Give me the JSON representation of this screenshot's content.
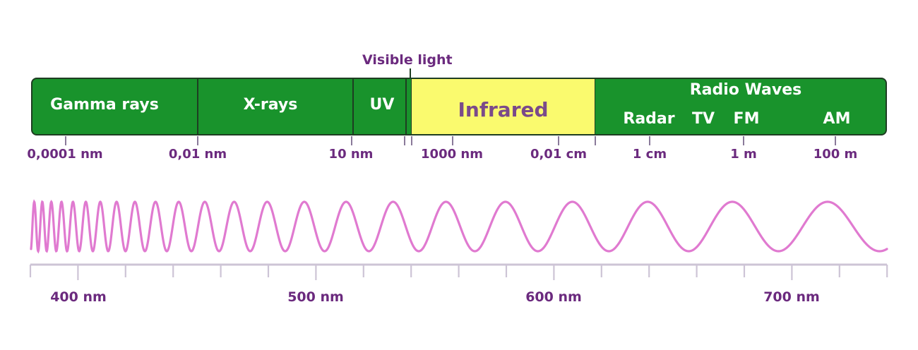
{
  "colors": {
    "band_green": "#19932c",
    "band_border": "#1e3d22",
    "infrared_fill": "#fafa6e",
    "infrared_text": "#7a4a8a",
    "label_purple": "#6b2a7e",
    "wave_pink": "#e07ad0",
    "scale_gray": "#cdc4d6"
  },
  "spectrum": {
    "gamma": "Gamma rays",
    "xrays": "X-rays",
    "uv": "UV",
    "infrared": "Infrared",
    "radio": "Radio Waves",
    "radar": "Radar",
    "tv": "TV",
    "fm": "FM",
    "am": "AM",
    "visible": "Visible light"
  },
  "ticks": [
    "0,0001 nm",
    "0,01 nm",
    "10 nm",
    "1000 nm",
    "0,01 cm",
    "1 cm",
    "1 m",
    "100 m"
  ],
  "visible_scale": [
    "400 nm",
    "500 nm",
    "600 nm",
    "700 nm"
  ]
}
